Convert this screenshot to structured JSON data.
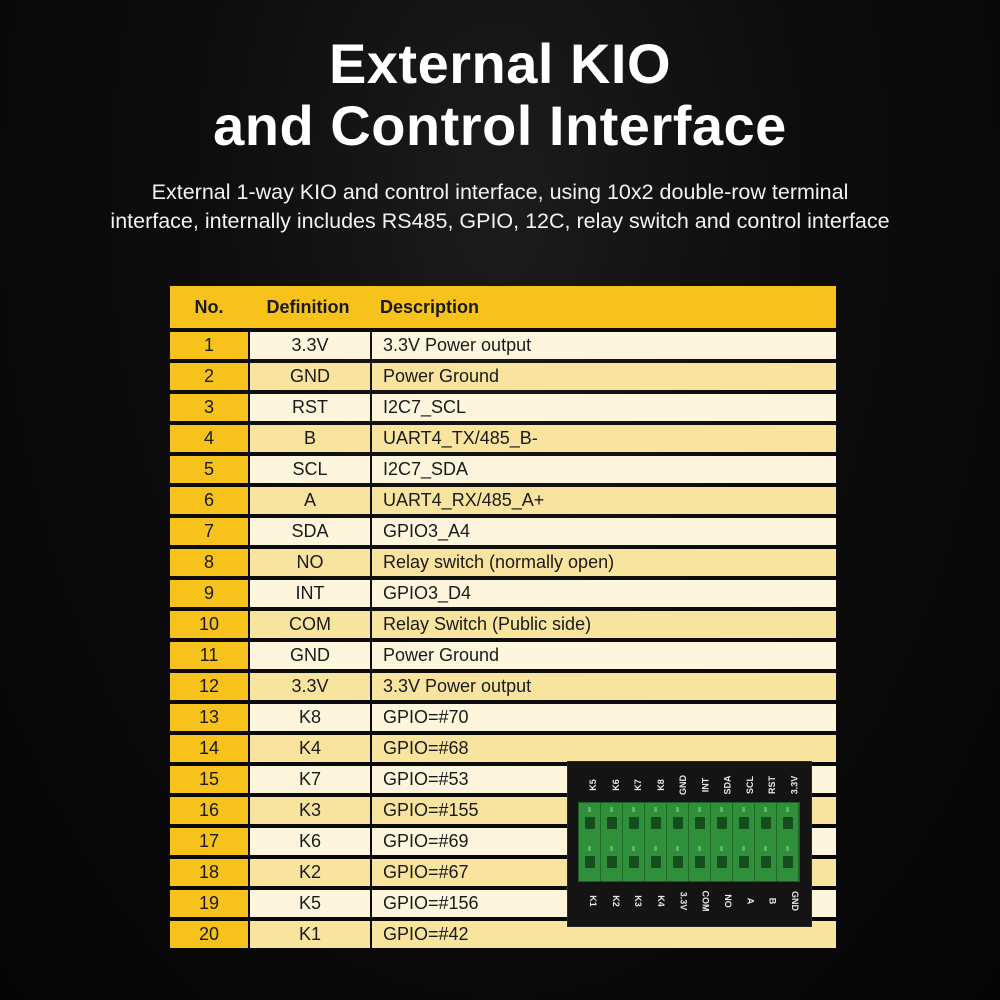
{
  "title": {
    "line1": "External KIO",
    "line2": "and Control Interface"
  },
  "subtitle": {
    "line1": "External 1-way KIO and control interface, using 10x2 double-row terminal",
    "line2": "interface, internally includes RS485, GPIO, 12C, relay switch and control interface"
  },
  "table": {
    "headers": {
      "no": "No.",
      "definition": "Definition",
      "description": "Description"
    },
    "rows": [
      {
        "no": "1",
        "def": "3.3V",
        "desc": "3.3V Power output"
      },
      {
        "no": "2",
        "def": "GND",
        "desc": "Power Ground"
      },
      {
        "no": "3",
        "def": "RST",
        "desc": "I2C7_SCL"
      },
      {
        "no": "4",
        "def": "B",
        "desc": "UART4_TX/485_B-"
      },
      {
        "no": "5",
        "def": "SCL",
        "desc": "I2C7_SDA"
      },
      {
        "no": "6",
        "def": "A",
        "desc": "UART4_RX/485_A+"
      },
      {
        "no": "7",
        "def": "SDA",
        "desc": "GPIO3_A4"
      },
      {
        "no": "8",
        "def": "NO",
        "desc": "Relay switch (normally open)"
      },
      {
        "no": "9",
        "def": "INT",
        "desc": "GPIO3_D4"
      },
      {
        "no": "10",
        "def": "COM",
        "desc": "Relay Switch (Public side)"
      },
      {
        "no": "11",
        "def": "GND",
        "desc": "Power Ground"
      },
      {
        "no": "12",
        "def": "3.3V",
        "desc": "3.3V Power output"
      },
      {
        "no": "13",
        "def": "K8",
        "desc": "GPIO=#70"
      },
      {
        "no": "14",
        "def": "K4",
        "desc": "GPIO=#68"
      },
      {
        "no": "15",
        "def": "K7",
        "desc": "GPIO=#53"
      },
      {
        "no": "16",
        "def": "K3",
        "desc": "GPIO=#155"
      },
      {
        "no": "17",
        "def": "K6",
        "desc": "GPIO=#69"
      },
      {
        "no": "18",
        "def": "K2",
        "desc": "GPIO=#67"
      },
      {
        "no": "19",
        "def": "K5",
        "desc": "GPIO=#156"
      },
      {
        "no": "20",
        "def": "K1",
        "desc": "GPIO=#42"
      }
    ]
  },
  "terminal": {
    "top_labels": [
      "K5",
      "K6",
      "K7",
      "K8",
      "GND",
      "INT",
      "SDA",
      "SCL",
      "RST",
      "3.3V"
    ],
    "bottom_labels": [
      "K1",
      "K2",
      "K3",
      "K4",
      "3.3V",
      "COM",
      "NO",
      "A",
      "B",
      "GND"
    ]
  },
  "colors": {
    "header_yellow": "#f7c21c",
    "row_light": "#fdf6dc",
    "row_dark": "#f8e39f",
    "terminal_green": "#2f8f3a"
  }
}
